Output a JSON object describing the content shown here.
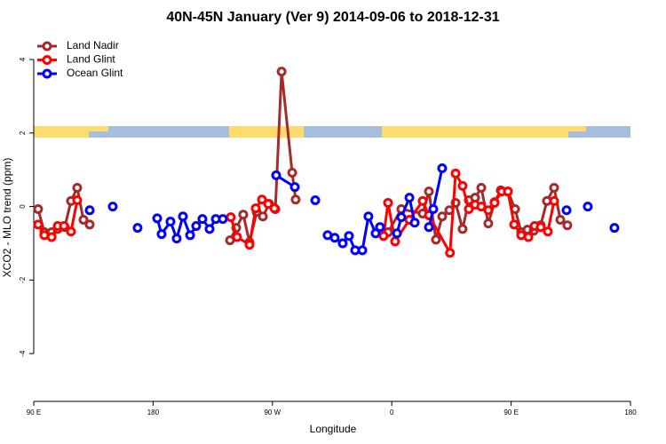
{
  "chart_data": {
    "type": "line",
    "title": "40N-45N January (Ver 9)   2014-09-06 to 2018-12-31",
    "x_label": "Longitude",
    "y_label": "XCO2 - MLO trend (ppm)",
    "xlim": [
      90,
      540
    ],
    "ylim": [
      -5.3,
      4.7
    ],
    "xticks": [
      {
        "value": 90,
        "label": "90 E"
      },
      180,
      {
        "value": 270,
        "label": "90 W"
      },
      {
        "value": 360,
        "label": "0"
      },
      {
        "value": 450,
        "label": "90 E"
      },
      {
        "value": 540,
        "label": "180"
      }
    ],
    "yticks": [
      -4,
      -2,
      0,
      2,
      4
    ],
    "legend": "topleft",
    "series": [
      {
        "name": "Land Nadir",
        "color": "#a52a2a",
        "x": [
          93.3,
          98.0,
          103.5,
          108.1,
          113.4,
          118.1,
          122.8,
          127.5,
          132.2,
          null,
          238.0,
          242.7,
          248.0,
          252.7,
          258.1,
          262.8,
          267.5,
          272.2,
          276.9,
          284.9,
          287.5,
          null,
          357.2,
          367.2,
          383.3,
          388.0,
          393.3,
          398.0,
          403.4,
          408.1,
          413.4,
          418.1,
          422.8,
          427.5,
          432.8,
          437.5,
          442.2,
          447.6,
          453.0,
          457.6,
          462.3,
          467.0,
          472.3,
          477.0,
          482.4,
          487.1,
          492.4
        ],
        "values": [
          -0.07,
          -0.7,
          -0.7,
          -0.61,
          -0.56,
          0.15,
          0.51,
          -0.36,
          -0.49,
          null,
          -0.92,
          -0.58,
          -0.22,
          -0.97,
          -0.15,
          -0.27,
          0.07,
          -0.07,
          3.67,
          0.92,
          0.19,
          null,
          -0.7,
          -0.07,
          -0.19,
          0.41,
          -0.9,
          -0.27,
          -0.1,
          0.1,
          -0.61,
          0.17,
          0.24,
          0.51,
          -0.46,
          0.12,
          0.44,
          0.41,
          -0.07,
          -0.7,
          -0.63,
          -0.66,
          -0.51,
          0.15,
          0.51,
          -0.36,
          -0.51
        ]
      },
      {
        "name": "Land Glint",
        "color": "#ff0000",
        "x": [
          93.3,
          98.0,
          103.5,
          108.1,
          112.8,
          118.1,
          122.8,
          null,
          238.6,
          243.3,
          252.7,
          257.4,
          262.1,
          266.8,
          271.5,
          null,
          353.8,
          357.2,
          362.5,
          373.3,
          383.3,
          388.0,
          403.9,
          408.1,
          413.4,
          418.1,
          422.8,
          427.5,
          432.8,
          437.5,
          442.9,
          447.6,
          452.3,
          457.6,
          463.0,
          467.7,
          472.3,
          477.7,
          482.4
        ],
        "values": [
          -0.49,
          -0.78,
          -0.83,
          -0.53,
          -0.53,
          -0.68,
          0.17,
          null,
          -0.29,
          -0.83,
          -1.04,
          -0.05,
          0.19,
          0.07,
          -0.05,
          null,
          -0.8,
          0.1,
          -0.95,
          -0.36,
          0.15,
          -0.24,
          -1.26,
          0.9,
          0.56,
          -0.07,
          0.05,
          0,
          -0.1,
          0.1,
          0.41,
          0.41,
          -0.49,
          -0.78,
          -0.83,
          -0.53,
          -0.56,
          -0.68,
          0.15
        ]
      },
      {
        "name": "Ocean Glint",
        "color": "#0000ff",
        "x": [
          132.2,
          null,
          149.6,
          null,
          168.3,
          null,
          183.1,
          186.4,
          193.1,
          197.8,
          202.5,
          207.9,
          212.5,
          217.2,
          222.6,
          227.3,
          232.6,
          null,
          272.8,
          286.9,
          null,
          302.3,
          null,
          311.6,
          317.0,
          323.0,
          327.7,
          332.4,
          337.8,
          342.4,
          347.8,
          351.1,
          null,
          363.9,
          367.2,
          373.3,
          377.3,
          null,
          388.0,
          391.3,
          398.0,
          null,
          491.8,
          null,
          507.8,
          null,
          527.9
        ],
        "values": [
          -0.1,
          null,
          0,
          null,
          -0.58,
          null,
          -0.32,
          -0.75,
          -0.41,
          -0.87,
          -0.27,
          -0.78,
          -0.53,
          -0.34,
          -0.61,
          -0.34,
          -0.34,
          null,
          0.85,
          0.53,
          null,
          0.17,
          null,
          -0.78,
          -0.85,
          -1.0,
          -0.8,
          -1.19,
          -1.19,
          -0.27,
          -0.73,
          -0.56,
          null,
          -0.73,
          -0.29,
          0.24,
          -0.44,
          null,
          -0.56,
          -0.07,
          1.04,
          null,
          -0.1,
          null,
          0,
          null,
          -0.58
        ]
      }
    ]
  }
}
